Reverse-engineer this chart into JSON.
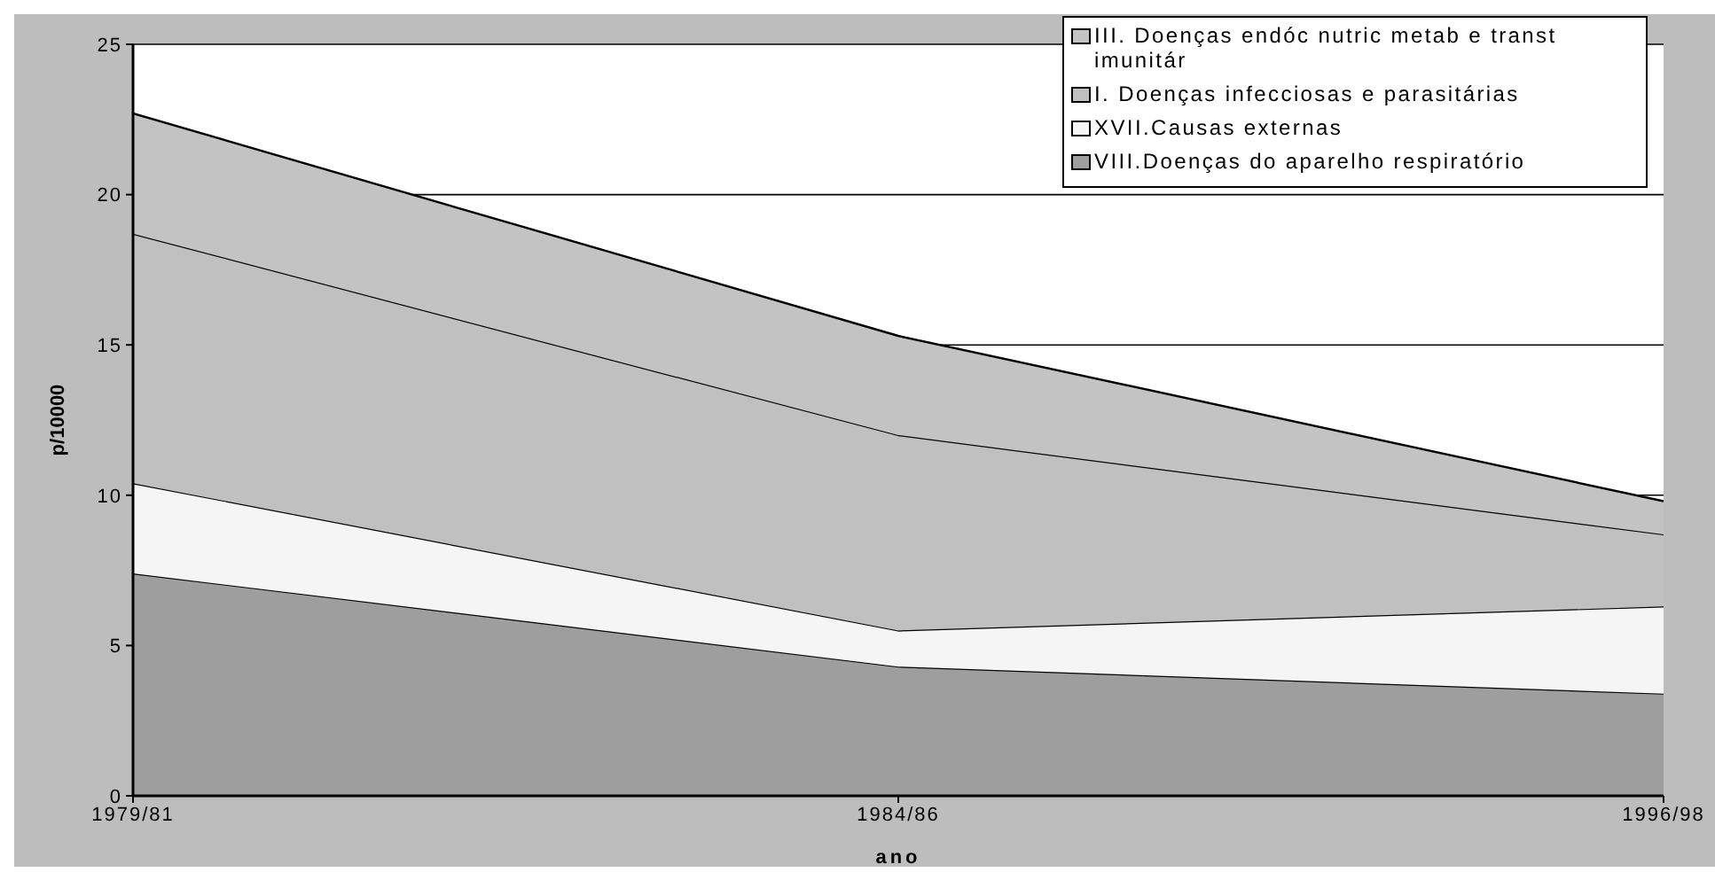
{
  "chart_data": {
    "type": "area",
    "stacked": true,
    "xlabel": "ano",
    "ylabel": "p/10000",
    "categories": [
      "1979/81",
      "1984/86",
      "1996/98"
    ],
    "series": [
      {
        "name": "VIII.Doenças do aparelho respiratório",
        "color": "#9e9e9e",
        "values": [
          7.4,
          4.3,
          3.4
        ]
      },
      {
        "name": "XVII.Causas externas",
        "color": "#f5f5f5",
        "values": [
          3.0,
          1.2,
          2.9
        ]
      },
      {
        "name": "I. Doenças infecciosas e parasitárias",
        "color": "#c0c0c0",
        "values": [
          8.3,
          6.5,
          2.4
        ]
      },
      {
        "name": "III. Doenças endóc nutric metab e transt imunitár",
        "color": "#c3c3c3",
        "values": [
          4.0,
          3.3,
          1.1
        ]
      }
    ],
    "ylim": [
      0,
      25
    ],
    "yticks": [
      0,
      5,
      10,
      15,
      20,
      25
    ],
    "grid": "y",
    "legend": "top right"
  }
}
